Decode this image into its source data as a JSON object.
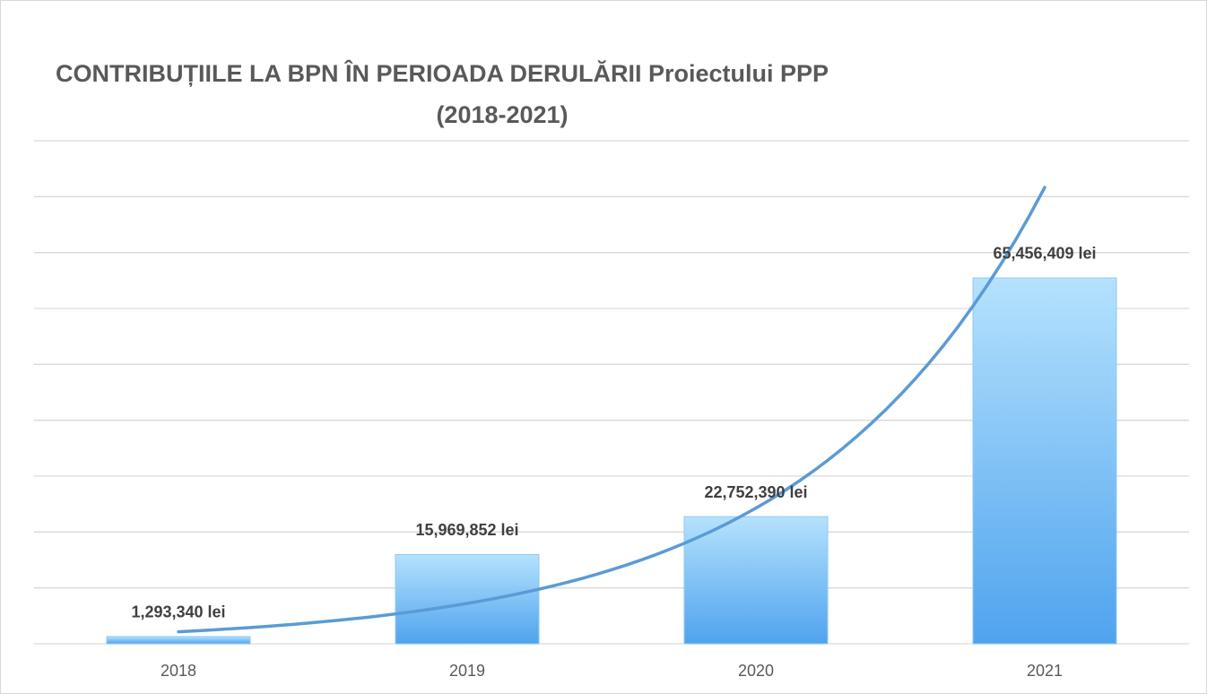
{
  "chart_data": {
    "type": "bar",
    "title": [
      "CONTRIBUȚIILE LA BPN ÎN PERIOADA DERULĂRII Proiectului PPP",
      "(2018-2021)"
    ],
    "categories": [
      "2018",
      "2019",
      "2020",
      "2021"
    ],
    "values": [
      1293340,
      15969852,
      22752390,
      65456409
    ],
    "value_labels": [
      "1,293,340 lei",
      "15,969,852 lei",
      "22,752,390 lei",
      "65,456,409 lei"
    ],
    "color": "#4fa3ee",
    "ylim": [
      0,
      90000000
    ],
    "yticks": [
      0,
      10000000,
      20000000,
      30000000,
      40000000,
      50000000,
      60000000,
      70000000,
      80000000,
      90000000
    ],
    "grid": true,
    "trendline": {
      "type": "exponential",
      "color": "#5b9bd5"
    }
  }
}
